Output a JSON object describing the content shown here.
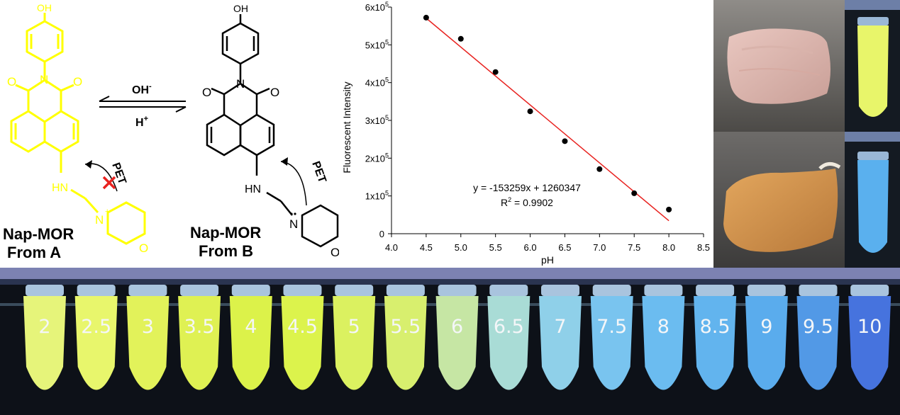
{
  "scheme": {
    "reaction_forward": "OH",
    "reaction_forward_sup": "-",
    "reaction_backward": "H",
    "reaction_backward_sup": "+",
    "form_a": {
      "title_line1": "Nap-MOR",
      "title_line2": "From A",
      "pet_label": "PET",
      "color": "#ffff00"
    },
    "form_b": {
      "title_line1": "Nap-MOR",
      "title_line2": "From B",
      "pet_label": "PET",
      "color": "#000000"
    },
    "atoms": {
      "hydroxyl": "OH",
      "oxygen": "O",
      "nitrogen": "N",
      "amine": "HN",
      "ring_oxygen": "O",
      "protonated_n": "N",
      "plus": "+",
      "h": "H"
    }
  },
  "chart_data": {
    "type": "scatter",
    "xlabel": "pH",
    "ylabel": "Fluorescent Intensity",
    "xlim": [
      4.0,
      8.5
    ],
    "ylim": [
      0,
      600000
    ],
    "x_ticks": [
      4.0,
      4.5,
      5.0,
      5.5,
      6.0,
      6.5,
      7.0,
      7.5,
      8.0,
      8.5
    ],
    "x_tick_labels": [
      "4.0",
      "4.5",
      "5.0",
      "5.5",
      "6.0",
      "6.5",
      "7.0",
      "7.5",
      "8.0",
      "8.5"
    ],
    "y_ticks": [
      {
        "value": 0,
        "base": "0",
        "exp": ""
      },
      {
        "value": 100000,
        "base": "1x10",
        "exp": "5"
      },
      {
        "value": 200000,
        "base": "2x10",
        "exp": "5"
      },
      {
        "value": 300000,
        "base": "3x10",
        "exp": "5"
      },
      {
        "value": 400000,
        "base": "4x10",
        "exp": "5"
      },
      {
        "value": 500000,
        "base": "5x10",
        "exp": "5"
      },
      {
        "value": 600000,
        "base": "6x10",
        "exp": "5"
      }
    ],
    "points": [
      {
        "x": 4.5,
        "y": 572000
      },
      {
        "x": 5.0,
        "y": 516000
      },
      {
        "x": 5.5,
        "y": 428000
      },
      {
        "x": 6.0,
        "y": 324000
      },
      {
        "x": 6.5,
        "y": 245000
      },
      {
        "x": 7.0,
        "y": 171000
      },
      {
        "x": 7.5,
        "y": 107000
      },
      {
        "x": 8.0,
        "y": 64000
      }
    ],
    "fit": {
      "slope": -153259,
      "intercept": 1260347,
      "x_range": [
        4.5,
        8.0
      ],
      "color": "#e8221f"
    },
    "equation_label": "y = -153259x + 1260347",
    "r2_label_prefix": "R",
    "r2_label_sup": "2",
    "r2_label_value": " = 0.9902",
    "grid": false,
    "legend": "none"
  },
  "tubes": {
    "labels": [
      "2",
      "2.5",
      "3",
      "3.5",
      "4",
      "4.5",
      "5",
      "5.5",
      "6",
      "6.5",
      "7",
      "7.5",
      "8",
      "8.5",
      "9",
      "9.5",
      "10"
    ],
    "colors": [
      "#e6f47a",
      "#e8f66c",
      "#e2f25a",
      "#dff153",
      "#dcf24a",
      "#dcf34c",
      "#dbf160",
      "#d8ef6e",
      "#c6e6a4",
      "#a9dcd6",
      "#8fd0e9",
      "#79c4ef",
      "#6bbcf0",
      "#62b4ee",
      "#5aaced",
      "#5299e6",
      "#4673de"
    ]
  },
  "photos": {
    "raw_meat": "raw-meat",
    "cooked_meat": "spoiled-meat",
    "tube_top_color": "#e8f56a",
    "tube_bottom_color": "#5ab0ee"
  }
}
